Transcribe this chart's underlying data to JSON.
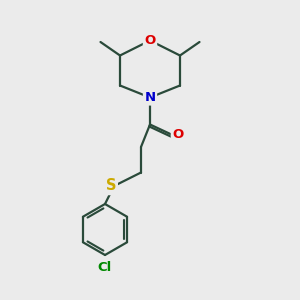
{
  "background_color": "#ebebeb",
  "bond_color": "#2a4a3a",
  "line_width": 1.6,
  "atom_colors": {
    "O": "#dd0000",
    "N": "#0000cc",
    "S": "#ccaa00",
    "Cl": "#008800",
    "C": "#2a4a3a"
  },
  "font_size": 9.5,
  "figsize": [
    3.0,
    3.0
  ],
  "dpi": 100
}
